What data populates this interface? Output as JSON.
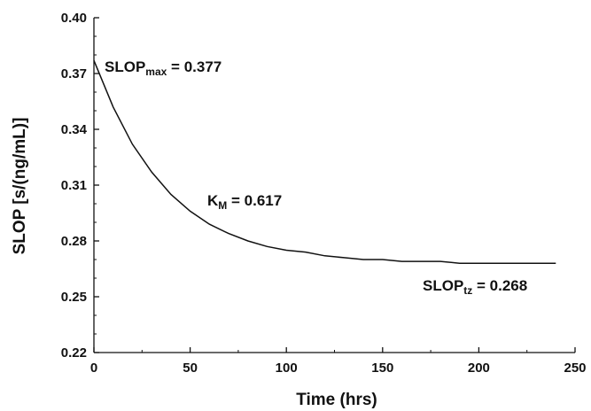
{
  "chart_data": {
    "type": "line",
    "xlabel": "Time (hrs)",
    "ylabel": "SLOP [s/(ng/mL)]",
    "xlim": [
      0,
      250
    ],
    "ylim": [
      0.22,
      0.4
    ],
    "x_ticks": [
      "0",
      "50",
      "100",
      "150",
      "200",
      "250"
    ],
    "y_ticks": [
      "0.22",
      "0.25",
      "0.28",
      "0.31",
      "0.34",
      "0.37",
      "0.40"
    ],
    "grid": false,
    "series": [
      {
        "x": [
          0,
          10,
          20,
          30,
          40,
          50,
          60,
          70,
          80,
          90,
          100,
          110,
          120,
          130,
          140,
          150,
          160,
          170,
          180,
          190,
          200,
          210,
          220,
          230,
          240
        ],
        "y": [
          0.377,
          0.352,
          0.332,
          0.317,
          0.305,
          0.296,
          0.289,
          0.284,
          0.28,
          0.277,
          0.275,
          0.274,
          0.272,
          0.271,
          0.27,
          0.27,
          0.269,
          0.269,
          0.269,
          0.268,
          0.268,
          0.268,
          0.268,
          0.268,
          0.268
        ]
      }
    ],
    "annotations": [
      {
        "main": "SLOP",
        "sub": "max",
        "rest": " = 0.377"
      },
      {
        "main": "K",
        "sub": "M",
        "rest": " = 0.617"
      },
      {
        "main": "SLOP",
        "sub": "tz",
        "rest": " = 0.268"
      }
    ]
  }
}
